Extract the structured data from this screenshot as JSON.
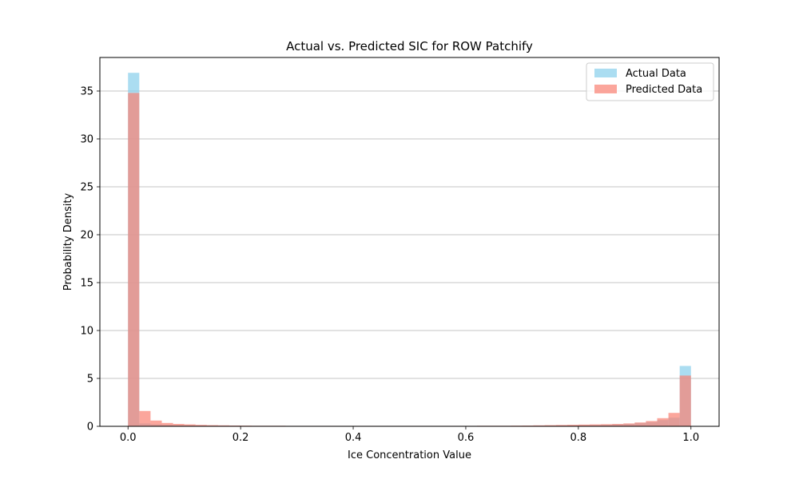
{
  "chart_data": {
    "type": "bar",
    "title": "Actual vs. Predicted SIC for ROW Patchify",
    "xlabel": "Ice Concentration Value",
    "ylabel": "Probability Density",
    "xlim": [
      -0.05,
      1.05
    ],
    "ylim": [
      0,
      38.5
    ],
    "xticks": [
      0.0,
      0.2,
      0.4,
      0.6,
      0.8,
      1.0
    ],
    "xtick_labels": [
      "0.0",
      "0.2",
      "0.4",
      "0.6",
      "0.8",
      "1.0"
    ],
    "yticks": [
      0,
      5,
      10,
      15,
      20,
      25,
      30,
      35
    ],
    "ytick_labels": [
      "0",
      "5",
      "10",
      "15",
      "20",
      "25",
      "30",
      "35"
    ],
    "grid": "y",
    "legend": "upper-right",
    "bin_edges": [
      0.0,
      0.02,
      0.04,
      0.06,
      0.08,
      0.1,
      0.12,
      0.14,
      0.16,
      0.18,
      0.2,
      0.22,
      0.24,
      0.26,
      0.28,
      0.3,
      0.32,
      0.34,
      0.36,
      0.38,
      0.4,
      0.42,
      0.44,
      0.46,
      0.48,
      0.5,
      0.52,
      0.54,
      0.56,
      0.58,
      0.6,
      0.62,
      0.64,
      0.66,
      0.68,
      0.7,
      0.72,
      0.74,
      0.76,
      0.78,
      0.8,
      0.82,
      0.84,
      0.86,
      0.88,
      0.9,
      0.92,
      0.94,
      0.96,
      0.98,
      1.0
    ],
    "series": [
      {
        "name": "Actual Data",
        "color": "#87ceeb",
        "opacity": 0.7,
        "values": [
          36.9,
          0.3,
          0.2,
          0.15,
          0.12,
          0.1,
          0.08,
          0.07,
          0.06,
          0.06,
          0.05,
          0.05,
          0.05,
          0.05,
          0.05,
          0.05,
          0.05,
          0.05,
          0.05,
          0.05,
          0.05,
          0.05,
          0.05,
          0.05,
          0.05,
          0.05,
          0.05,
          0.05,
          0.05,
          0.05,
          0.05,
          0.05,
          0.05,
          0.05,
          0.05,
          0.05,
          0.06,
          0.07,
          0.08,
          0.09,
          0.1,
          0.12,
          0.15,
          0.2,
          0.25,
          0.35,
          0.45,
          0.65,
          0.9,
          6.3
        ]
      },
      {
        "name": "Predicted Data",
        "color": "#fa8072",
        "opacity": 0.7,
        "values": [
          34.8,
          1.6,
          0.6,
          0.35,
          0.25,
          0.2,
          0.15,
          0.12,
          0.1,
          0.08,
          0.07,
          0.06,
          0.06,
          0.06,
          0.05,
          0.05,
          0.05,
          0.05,
          0.05,
          0.05,
          0.05,
          0.05,
          0.05,
          0.05,
          0.05,
          0.05,
          0.05,
          0.05,
          0.05,
          0.05,
          0.05,
          0.06,
          0.06,
          0.06,
          0.07,
          0.08,
          0.1,
          0.12,
          0.14,
          0.16,
          0.18,
          0.2,
          0.22,
          0.25,
          0.3,
          0.4,
          0.55,
          0.85,
          1.4,
          5.3
        ]
      }
    ]
  }
}
